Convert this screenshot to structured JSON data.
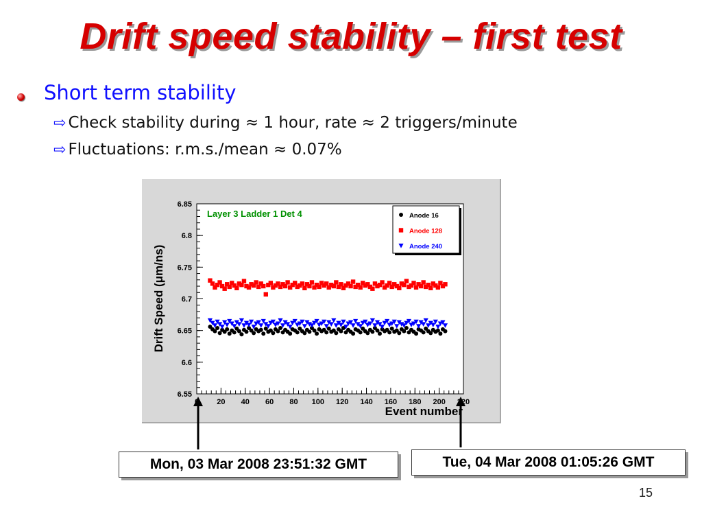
{
  "slide": {
    "title": "Drift speed stability – first test",
    "bullet": "Short term stability",
    "subbullets": [
      "Check stability during ≈ 1 hour, rate ≈ 2 triggers/minute",
      "Fluctuations: r.m.s./mean  ≈ 0.07%"
    ],
    "timestamps": {
      "start": "Mon, 03 Mar 2008 23:51:32 GMT",
      "end": "Tue, 04 Mar 2008 01:05:26 GMT"
    },
    "page_number": "15",
    "colors": {
      "title": "#d60000",
      "bullet_text": "#1010ff",
      "plot_label": "#009000"
    }
  },
  "chart_data": {
    "type": "scatter",
    "annotation": "Layer 3 Ladder 1 Det 4",
    "xlabel": "Event number",
    "ylabel": "Drift Speed (μm/ns)",
    "xlim": [
      0,
      220
    ],
    "ylim": [
      6.55,
      6.85
    ],
    "xticks": [
      "0",
      "20",
      "40",
      "60",
      "80",
      "100",
      "120",
      "140",
      "160",
      "180",
      "200",
      "220"
    ],
    "yticks": [
      "6.55",
      "6.6",
      "6.65",
      "6.7",
      "6.75",
      "6.8",
      "6.85"
    ],
    "legend_position": "top-right",
    "grid": false,
    "series": [
      {
        "name": "Anode 16",
        "marker": "circle",
        "color": "#000000",
        "x": [
          11,
          13,
          15,
          17,
          19,
          21,
          23,
          25,
          27,
          29,
          31,
          33,
          35,
          37,
          39,
          41,
          43,
          45,
          47,
          49,
          51,
          53,
          55,
          57,
          59,
          61,
          63,
          65,
          67,
          69,
          71,
          73,
          75,
          77,
          79,
          81,
          83,
          85,
          87,
          89,
          91,
          93,
          95,
          97,
          99,
          101,
          103,
          105,
          107,
          109,
          111,
          113,
          115,
          117,
          119,
          121,
          123,
          125,
          127,
          129,
          131,
          133,
          135,
          137,
          139,
          141,
          143,
          145,
          147,
          149,
          151,
          153,
          155,
          157,
          159,
          161,
          163,
          165,
          167,
          169,
          171,
          173,
          175,
          177,
          179,
          181,
          183,
          185,
          187,
          189,
          191,
          193,
          195,
          197,
          199,
          201,
          203,
          205
        ],
        "y": [
          6.656,
          6.652,
          6.649,
          6.654,
          6.646,
          6.651,
          6.648,
          6.652,
          6.645,
          6.65,
          6.647,
          6.653,
          6.649,
          6.644,
          6.651,
          6.648,
          6.654,
          6.65,
          6.646,
          6.652,
          6.649,
          6.651,
          6.645,
          6.653,
          6.648,
          6.65,
          6.646,
          6.652,
          6.649,
          6.654,
          6.647,
          6.651,
          6.648,
          6.645,
          6.652,
          6.65,
          6.647,
          6.653,
          6.649,
          6.646,
          6.651,
          6.648,
          6.654,
          6.65,
          6.645,
          6.652,
          6.649,
          6.651,
          6.647,
          6.653,
          6.648,
          6.65,
          6.646,
          6.652,
          6.649,
          6.654,
          6.647,
          6.651,
          6.648,
          6.645,
          6.652,
          6.65,
          6.647,
          6.653,
          6.649,
          6.646,
          6.651,
          6.648,
          6.654,
          6.65,
          6.645,
          6.652,
          6.649,
          6.651,
          6.647,
          6.653,
          6.648,
          6.65,
          6.646,
          6.652,
          6.649,
          6.654,
          6.647,
          6.651,
          6.648,
          6.645,
          6.652,
          6.65,
          6.647,
          6.653,
          6.649,
          6.646,
          6.651,
          6.648,
          6.65,
          6.645,
          6.652,
          6.649
        ]
      },
      {
        "name": "Anode 128",
        "marker": "square",
        "color": "#ff0000",
        "x": [
          11,
          13,
          15,
          17,
          19,
          21,
          23,
          25,
          27,
          29,
          31,
          33,
          35,
          37,
          39,
          41,
          43,
          45,
          47,
          49,
          51,
          53,
          55,
          57,
          59,
          61,
          63,
          65,
          67,
          69,
          71,
          73,
          75,
          77,
          79,
          81,
          83,
          85,
          87,
          89,
          91,
          93,
          95,
          97,
          99,
          101,
          103,
          105,
          107,
          109,
          111,
          113,
          115,
          117,
          119,
          121,
          123,
          125,
          127,
          129,
          131,
          133,
          135,
          137,
          139,
          141,
          143,
          145,
          147,
          149,
          151,
          153,
          155,
          157,
          159,
          161,
          163,
          165,
          167,
          169,
          171,
          173,
          175,
          177,
          179,
          181,
          183,
          185,
          187,
          189,
          191,
          193,
          195,
          197,
          199,
          201,
          203,
          205
        ],
        "y": [
          6.729,
          6.724,
          6.718,
          6.722,
          6.726,
          6.72,
          6.716,
          6.723,
          6.719,
          6.725,
          6.721,
          6.717,
          6.724,
          6.722,
          6.728,
          6.72,
          6.718,
          6.723,
          6.721,
          6.726,
          6.719,
          6.724,
          6.72,
          6.707,
          6.722,
          6.725,
          6.718,
          6.721,
          6.724,
          6.719,
          6.723,
          6.72,
          6.726,
          6.718,
          6.722,
          6.725,
          6.719,
          6.721,
          6.724,
          6.717,
          6.723,
          6.72,
          6.726,
          6.718,
          6.722,
          6.719,
          6.725,
          6.721,
          6.724,
          6.718,
          6.722,
          6.72,
          6.726,
          6.719,
          6.723,
          6.717,
          6.721,
          6.724,
          6.72,
          6.727,
          6.719,
          6.722,
          6.718,
          6.725,
          6.721,
          6.723,
          6.719,
          6.716,
          6.724,
          6.72,
          6.722,
          6.726,
          6.718,
          6.721,
          6.725,
          6.719,
          6.723,
          6.72,
          6.717,
          6.724,
          6.722,
          6.728,
          6.719,
          6.721,
          6.725,
          6.718,
          6.723,
          6.72,
          6.726,
          6.719,
          6.722,
          6.717,
          6.724,
          6.721,
          6.718,
          6.725,
          6.72,
          6.723
        ]
      },
      {
        "name": "Anode 240",
        "marker": "triangle-down",
        "color": "#0000ff",
        "x": [
          11,
          13,
          15,
          17,
          19,
          21,
          23,
          25,
          27,
          29,
          31,
          33,
          35,
          37,
          39,
          41,
          43,
          45,
          47,
          49,
          51,
          53,
          55,
          57,
          59,
          61,
          63,
          65,
          67,
          69,
          71,
          73,
          75,
          77,
          79,
          81,
          83,
          85,
          87,
          89,
          91,
          93,
          95,
          97,
          99,
          101,
          103,
          105,
          107,
          109,
          111,
          113,
          115,
          117,
          119,
          121,
          123,
          125,
          127,
          129,
          131,
          133,
          135,
          137,
          139,
          141,
          143,
          145,
          147,
          149,
          151,
          153,
          155,
          157,
          159,
          161,
          163,
          165,
          167,
          169,
          171,
          173,
          175,
          177,
          179,
          181,
          183,
          185,
          187,
          189,
          191,
          193,
          195,
          197,
          199,
          201,
          203,
          205
        ],
        "y": [
          6.666,
          6.662,
          6.658,
          6.664,
          6.66,
          6.656,
          6.663,
          6.659,
          6.665,
          6.661,
          6.657,
          6.663,
          6.66,
          6.666,
          6.658,
          6.662,
          6.659,
          6.664,
          6.656,
          6.661,
          6.663,
          6.658,
          6.665,
          6.66,
          6.657,
          6.662,
          6.664,
          6.659,
          6.661,
          6.666,
          6.658,
          6.663,
          6.66,
          6.656,
          6.662,
          6.665,
          6.659,
          6.661,
          6.664,
          6.657,
          6.663,
          6.66,
          6.658,
          6.662,
          6.665,
          6.659,
          6.661,
          6.664,
          6.657,
          6.663,
          6.66,
          6.666,
          6.658,
          6.662,
          6.659,
          6.664,
          6.656,
          6.661,
          6.663,
          6.658,
          6.665,
          6.66,
          6.657,
          6.662,
          6.664,
          6.659,
          6.661,
          6.666,
          6.658,
          6.663,
          6.66,
          6.656,
          6.662,
          6.665,
          6.659,
          6.661,
          6.664,
          6.657,
          6.663,
          6.66,
          6.658,
          6.662,
          6.665,
          6.659,
          6.661,
          6.664,
          6.657,
          6.663,
          6.66,
          6.666,
          6.658,
          6.662,
          6.659,
          6.664,
          6.656,
          6.661,
          6.663,
          6.658
        ]
      }
    ]
  }
}
